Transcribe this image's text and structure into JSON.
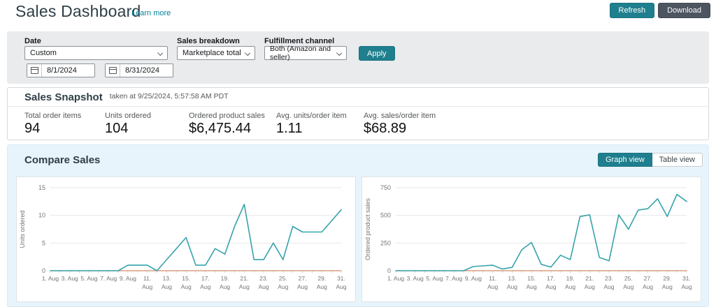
{
  "header": {
    "title": "Sales Dashboard",
    "learn_more": "Learn more",
    "refresh_label": "Refresh",
    "download_label": "Download"
  },
  "filters": {
    "date_label": "Date",
    "date_value": "Custom",
    "date_from": "8/1/2024",
    "date_to": "8/31/2024",
    "sales_breakdown_label": "Sales breakdown",
    "sales_breakdown_value": "Marketplace total",
    "fulfillment_label": "Fulfillment channel",
    "fulfillment_value": "Both (Amazon and seller)",
    "apply_label": "Apply"
  },
  "snapshot": {
    "title": "Sales Snapshot",
    "taken_at": "taken at 9/25/2024, 5:57:58 AM PDT",
    "stats": [
      {
        "label": "Total order items",
        "value": "94"
      },
      {
        "label": "Units ordered",
        "value": "104"
      },
      {
        "label": "Ordered product sales",
        "value": "$6,475.44"
      },
      {
        "label": "Avg. units/order item",
        "value": "1.11"
      },
      {
        "label": "Avg. sales/order item",
        "value": "$68.89"
      }
    ]
  },
  "compare": {
    "title": "Compare Sales",
    "graph_view_label": "Graph view",
    "table_view_label": "Table view"
  },
  "colors": {
    "accent_teal": "#1f7f8e",
    "dark_button": "#4d5560",
    "link_teal": "#008296",
    "line_teal": "#37a3ab",
    "line_orange": "#d08b63",
    "compare_bg": "#e7f4fb",
    "filter_bg": "#e9ebed"
  },
  "chart_data": [
    {
      "type": "line",
      "title": "",
      "xlabel": "",
      "ylabel": "Units ordered",
      "ylim": [
        0,
        15
      ],
      "yticks": [
        0,
        5,
        10,
        15
      ],
      "grid": true,
      "legend_position": "none",
      "x_tick_labels": [
        "1. Aug",
        "3. Aug",
        "5. Aug",
        "7. Aug",
        "9. Aug",
        "11. Aug",
        "13. Aug",
        "15. Aug",
        "17. Aug",
        "19. Aug",
        "21. Aug",
        "23. Aug",
        "25. Aug",
        "27. Aug",
        "29. Aug",
        "31. Aug"
      ],
      "x_days": [
        1,
        2,
        3,
        4,
        5,
        6,
        7,
        8,
        9,
        10,
        11,
        12,
        13,
        14,
        15,
        16,
        17,
        18,
        19,
        20,
        21,
        22,
        23,
        24,
        25,
        26,
        27,
        28,
        29,
        30,
        31
      ],
      "series": [
        {
          "name": "units-ordered",
          "color": "#37a3ab",
          "values": [
            0,
            0,
            0,
            0,
            0,
            0,
            0,
            0,
            1,
            1,
            1,
            0,
            2,
            4,
            6,
            1,
            1,
            4,
            3,
            8,
            12,
            2,
            2,
            5,
            2,
            8,
            7,
            7,
            7,
            9,
            11
          ]
        },
        {
          "name": "comparison-baseline",
          "color": "#d08b63",
          "values": [
            0,
            0,
            0,
            0,
            0,
            0,
            0,
            0,
            0,
            0,
            0,
            0,
            0,
            0,
            0,
            0,
            0,
            0,
            0,
            0,
            0,
            0,
            0,
            0,
            0,
            0,
            0,
            0,
            0,
            0,
            0
          ]
        }
      ]
    },
    {
      "type": "line",
      "title": "",
      "xlabel": "",
      "ylabel": "Ordered product sales",
      "ylim": [
        0,
        750
      ],
      "yticks": [
        0,
        250,
        500,
        750
      ],
      "grid": true,
      "legend_position": "none",
      "x_tick_labels": [
        "1. Aug",
        "3. Aug",
        "5. Aug",
        "7. Aug",
        "9. Aug",
        "11. Aug",
        "13. Aug",
        "15. Aug",
        "17. Aug",
        "19. Aug",
        "21. Aug",
        "23. Aug",
        "25. Aug",
        "27. Aug",
        "29. Aug",
        "31. Aug"
      ],
      "x_days": [
        1,
        2,
        3,
        4,
        5,
        6,
        7,
        8,
        9,
        10,
        11,
        12,
        13,
        14,
        15,
        16,
        17,
        18,
        19,
        20,
        21,
        22,
        23,
        24,
        25,
        26,
        27,
        28,
        29,
        30,
        31
      ],
      "series": [
        {
          "name": "ordered-product-sales",
          "color": "#37a3ab",
          "values": [
            0,
            0,
            0,
            0,
            0,
            0,
            0,
            0,
            38,
            44,
            50,
            15,
            30,
            190,
            255,
            58,
            33,
            140,
            100,
            490,
            505,
            120,
            90,
            505,
            375,
            548,
            560,
            650,
            490,
            690,
            625
          ]
        },
        {
          "name": "comparison-baseline",
          "color": "#d08b63",
          "values": [
            0,
            0,
            0,
            0,
            0,
            0,
            0,
            0,
            0,
            0,
            0,
            0,
            0,
            0,
            0,
            0,
            0,
            0,
            0,
            0,
            0,
            0,
            0,
            0,
            0,
            0,
            0,
            0,
            0,
            0,
            0
          ]
        }
      ]
    }
  ]
}
